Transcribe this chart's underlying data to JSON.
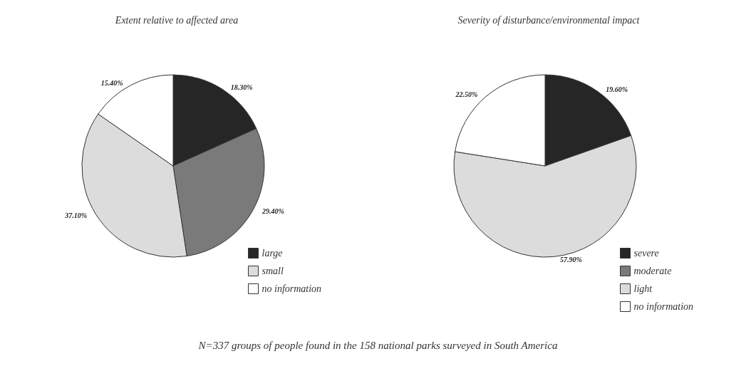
{
  "chart_data": [
    {
      "type": "pie",
      "title": "Extent relative to affected area",
      "categories": [
        "large",
        null,
        "small",
        "no information"
      ],
      "values": [
        18.3,
        29.4,
        37.1,
        15.4
      ],
      "colors": [
        "#262626",
        "#7a7a7a",
        "#dcdcdc",
        "#ffffff"
      ],
      "value_labels": [
        "18.30%",
        "29.40%",
        "37.10%",
        "15.40%"
      ],
      "legend": "bottom right",
      "annotations": [
        "N=337 groups of people found in the 158 national parks surveyed in South America"
      ]
    },
    {
      "type": "pie",
      "title": "Severity of disturbance/environmental impact",
      "categories": [
        "severe",
        "moderate",
        "light",
        "no information"
      ],
      "values": [
        19.6,
        null,
        57.9,
        22.5
      ],
      "colors": [
        "#262626",
        "#7a7a7a",
        "#dcdcdc",
        "#ffffff"
      ],
      "value_labels": [
        "19.60%",
        null,
        "57.90%",
        "22.50%"
      ],
      "legend": "bottom right"
    }
  ]
}
